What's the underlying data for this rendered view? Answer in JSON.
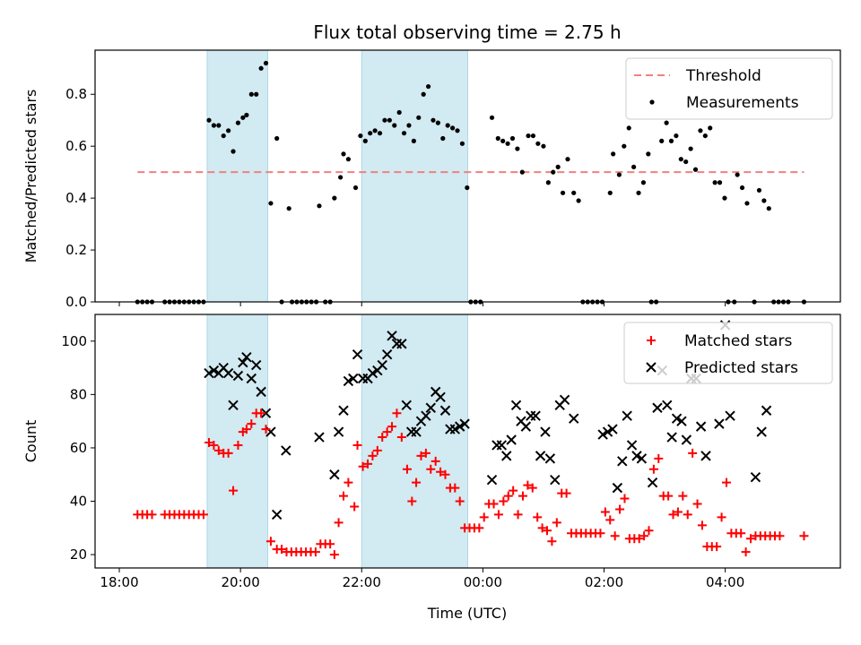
{
  "title": "Flux total observing time = 2.75 h",
  "colors": {
    "threshold": "#f08080",
    "measurement": "#000000",
    "matched": "#ff0000",
    "predicted": "#000000",
    "shade": "#add8e6"
  },
  "xaxis": {
    "label": "Time (UTC)",
    "ticks": [
      {
        "hours": 0,
        "label": "18:00"
      },
      {
        "hours": 2,
        "label": "20:00"
      },
      {
        "hours": 4,
        "label": "22:00"
      },
      {
        "hours": 6,
        "label": "00:00"
      },
      {
        "hours": 8,
        "label": "02:00"
      },
      {
        "hours": 10,
        "label": "04:00"
      }
    ],
    "xlim_hours": [
      -0.4,
      11.9
    ]
  },
  "shaded_intervals_hours": [
    [
      1.45,
      2.45
    ],
    [
      4.0,
      5.75
    ]
  ],
  "chart_data": [
    {
      "type": "scatter",
      "ylabel": "Matched/Predicted stars",
      "ylim": [
        0,
        0.97
      ],
      "yticks": [
        "0.0",
        "0.2",
        "0.4",
        "0.6",
        "0.8"
      ],
      "ytick_values": [
        0,
        0.2,
        0.4,
        0.6,
        0.8
      ],
      "legend": {
        "position": "top-right",
        "threshold_label": "Threshold",
        "measurement_label": "Measurements"
      },
      "threshold": {
        "value": 0.5,
        "x_range_hours": [
          0.3,
          11.3
        ]
      },
      "measurements": [
        [
          0.3,
          0
        ],
        [
          0.38,
          0
        ],
        [
          0.46,
          0
        ],
        [
          0.54,
          0
        ],
        [
          0.75,
          0
        ],
        [
          0.83,
          0
        ],
        [
          0.91,
          0
        ],
        [
          0.99,
          0
        ],
        [
          1.07,
          0
        ],
        [
          1.15,
          0
        ],
        [
          1.23,
          0
        ],
        [
          1.31,
          0
        ],
        [
          1.39,
          0
        ],
        [
          1.48,
          0.7
        ],
        [
          1.56,
          0.68
        ],
        [
          1.64,
          0.68
        ],
        [
          1.72,
          0.64
        ],
        [
          1.8,
          0.66
        ],
        [
          1.88,
          0.58
        ],
        [
          1.96,
          0.69
        ],
        [
          2.04,
          0.71
        ],
        [
          2.1,
          0.72
        ],
        [
          2.18,
          0.8
        ],
        [
          2.26,
          0.8
        ],
        [
          2.34,
          0.9
        ],
        [
          2.42,
          0.92
        ],
        [
          2.5,
          0.38
        ],
        [
          2.6,
          0.63
        ],
        [
          2.68,
          0
        ],
        [
          2.8,
          0.36
        ],
        [
          2.85,
          0
        ],
        [
          2.93,
          0
        ],
        [
          3.01,
          0
        ],
        [
          3.09,
          0
        ],
        [
          3.17,
          0
        ],
        [
          3.25,
          0
        ],
        [
          3.3,
          0.37
        ],
        [
          3.4,
          0
        ],
        [
          3.48,
          0
        ],
        [
          3.55,
          0.4
        ],
        [
          3.65,
          0.48
        ],
        [
          3.7,
          0.57
        ],
        [
          3.78,
          0.55
        ],
        [
          3.9,
          0.44
        ],
        [
          3.98,
          0.64
        ],
        [
          4.06,
          0.62
        ],
        [
          4.14,
          0.65
        ],
        [
          4.22,
          0.66
        ],
        [
          4.3,
          0.65
        ],
        [
          4.38,
          0.7
        ],
        [
          4.46,
          0.7
        ],
        [
          4.54,
          0.68
        ],
        [
          4.62,
          0.73
        ],
        [
          4.7,
          0.65
        ],
        [
          4.78,
          0.68
        ],
        [
          4.86,
          0.62
        ],
        [
          4.94,
          0.71
        ],
        [
          5.02,
          0.8
        ],
        [
          5.1,
          0.83
        ],
        [
          5.18,
          0.7
        ],
        [
          5.26,
          0.69
        ],
        [
          5.34,
          0.63
        ],
        [
          5.42,
          0.68
        ],
        [
          5.5,
          0.67
        ],
        [
          5.58,
          0.66
        ],
        [
          5.66,
          0.61
        ],
        [
          5.74,
          0.44
        ],
        [
          5.8,
          0
        ],
        [
          5.88,
          0
        ],
        [
          5.96,
          0
        ],
        [
          6.15,
          0.71
        ],
        [
          6.25,
          0.63
        ],
        [
          6.33,
          0.62
        ],
        [
          6.41,
          0.61
        ],
        [
          6.49,
          0.63
        ],
        [
          6.57,
          0.59
        ],
        [
          6.65,
          0.5
        ],
        [
          6.75,
          0.64
        ],
        [
          6.83,
          0.64
        ],
        [
          6.91,
          0.61
        ],
        [
          7.0,
          0.6
        ],
        [
          7.08,
          0.46
        ],
        [
          7.16,
          0.5
        ],
        [
          7.24,
          0.52
        ],
        [
          7.32,
          0.42
        ],
        [
          7.4,
          0.55
        ],
        [
          7.5,
          0.42
        ],
        [
          7.58,
          0.39
        ],
        [
          7.65,
          0
        ],
        [
          7.73,
          0
        ],
        [
          7.81,
          0
        ],
        [
          7.89,
          0
        ],
        [
          7.97,
          0
        ],
        [
          8.1,
          0.42
        ],
        [
          8.15,
          0.57
        ],
        [
          8.25,
          0.49
        ],
        [
          8.33,
          0.6
        ],
        [
          8.41,
          0.67
        ],
        [
          8.49,
          0.52
        ],
        [
          8.57,
          0.42
        ],
        [
          8.65,
          0.46
        ],
        [
          8.73,
          0.57
        ],
        [
          8.78,
          0
        ],
        [
          8.86,
          0
        ],
        [
          8.95,
          0.62
        ],
        [
          9.03,
          0.69
        ],
        [
          9.11,
          0.62
        ],
        [
          9.19,
          0.64
        ],
        [
          9.27,
          0.55
        ],
        [
          9.35,
          0.54
        ],
        [
          9.43,
          0.59
        ],
        [
          9.51,
          0.51
        ],
        [
          9.59,
          0.66
        ],
        [
          9.67,
          0.64
        ],
        [
          9.75,
          0.67
        ],
        [
          9.83,
          0.46
        ],
        [
          9.91,
          0.46
        ],
        [
          9.99,
          0.4
        ],
        [
          10.05,
          0
        ],
        [
          10.15,
          0
        ],
        [
          10.2,
          0.49
        ],
        [
          10.28,
          0.44
        ],
        [
          10.36,
          0.38
        ],
        [
          10.48,
          0
        ],
        [
          10.56,
          0.43
        ],
        [
          10.64,
          0.39
        ],
        [
          10.72,
          0.36
        ],
        [
          10.8,
          0
        ],
        [
          10.88,
          0
        ],
        [
          10.96,
          0
        ],
        [
          11.04,
          0
        ],
        [
          11.3,
          0
        ]
      ]
    },
    {
      "type": "scatter",
      "ylabel": "Count",
      "ylim": [
        15,
        110
      ],
      "yticks": [
        "20",
        "40",
        "60",
        "80",
        "100"
      ],
      "ytick_values": [
        20,
        40,
        60,
        80,
        100
      ],
      "legend": {
        "position": "top-right",
        "matched_label": "Matched stars",
        "predicted_label": "Predicted stars"
      },
      "matched": [
        [
          0.3,
          35
        ],
        [
          0.38,
          35
        ],
        [
          0.46,
          35
        ],
        [
          0.54,
          35
        ],
        [
          0.75,
          35
        ],
        [
          0.83,
          35
        ],
        [
          0.91,
          35
        ],
        [
          0.99,
          35
        ],
        [
          1.07,
          35
        ],
        [
          1.15,
          35
        ],
        [
          1.23,
          35
        ],
        [
          1.31,
          35
        ],
        [
          1.39,
          35
        ],
        [
          1.48,
          62
        ],
        [
          1.56,
          61
        ],
        [
          1.64,
          59
        ],
        [
          1.72,
          58
        ],
        [
          1.8,
          58
        ],
        [
          1.88,
          44
        ],
        [
          1.96,
          61
        ],
        [
          2.04,
          66
        ],
        [
          2.1,
          67
        ],
        [
          2.18,
          69
        ],
        [
          2.26,
          73
        ],
        [
          2.34,
          73
        ],
        [
          2.42,
          67
        ],
        [
          2.5,
          25
        ],
        [
          2.6,
          22
        ],
        [
          2.68,
          22
        ],
        [
          2.76,
          21
        ],
        [
          2.84,
          21
        ],
        [
          2.92,
          21
        ],
        [
          3.0,
          21
        ],
        [
          3.08,
          21
        ],
        [
          3.16,
          21
        ],
        [
          3.24,
          21
        ],
        [
          3.32,
          24
        ],
        [
          3.4,
          24
        ],
        [
          3.48,
          24
        ],
        [
          3.55,
          20
        ],
        [
          3.62,
          32
        ],
        [
          3.7,
          42
        ],
        [
          3.78,
          47
        ],
        [
          3.88,
          38
        ],
        [
          3.93,
          61
        ],
        [
          4.02,
          53
        ],
        [
          4.1,
          54
        ],
        [
          4.18,
          57
        ],
        [
          4.26,
          59
        ],
        [
          4.34,
          64
        ],
        [
          4.42,
          66
        ],
        [
          4.5,
          68
        ],
        [
          4.58,
          73
        ],
        [
          4.66,
          64
        ],
        [
          4.75,
          52
        ],
        [
          4.83,
          40
        ],
        [
          4.9,
          47
        ],
        [
          4.98,
          57
        ],
        [
          5.06,
          58
        ],
        [
          5.14,
          52
        ],
        [
          5.22,
          55
        ],
        [
          5.3,
          51
        ],
        [
          5.38,
          50
        ],
        [
          5.46,
          45
        ],
        [
          5.54,
          45
        ],
        [
          5.62,
          40
        ],
        [
          5.7,
          30
        ],
        [
          5.78,
          30
        ],
        [
          5.86,
          30
        ],
        [
          5.94,
          30
        ],
        [
          6.02,
          34
        ],
        [
          6.1,
          39
        ],
        [
          6.18,
          39
        ],
        [
          6.26,
          35
        ],
        [
          6.34,
          40
        ],
        [
          6.42,
          42
        ],
        [
          6.5,
          44
        ],
        [
          6.58,
          35
        ],
        [
          6.66,
          42
        ],
        [
          6.74,
          46
        ],
        [
          6.82,
          45
        ],
        [
          6.9,
          34
        ],
        [
          6.98,
          30
        ],
        [
          7.06,
          29
        ],
        [
          7.14,
          25
        ],
        [
          7.22,
          32
        ],
        [
          7.3,
          43
        ],
        [
          7.38,
          43
        ],
        [
          7.46,
          28
        ],
        [
          7.54,
          28
        ],
        [
          7.62,
          28
        ],
        [
          7.7,
          28
        ],
        [
          7.78,
          28
        ],
        [
          7.86,
          28
        ],
        [
          7.94,
          28
        ],
        [
          8.02,
          36
        ],
        [
          8.1,
          33
        ],
        [
          8.18,
          27
        ],
        [
          8.26,
          37
        ],
        [
          8.34,
          41
        ],
        [
          8.42,
          26
        ],
        [
          8.5,
          26
        ],
        [
          8.58,
          26
        ],
        [
          8.66,
          27
        ],
        [
          8.74,
          29
        ],
        [
          8.82,
          52
        ],
        [
          8.9,
          56
        ],
        [
          8.98,
          42
        ],
        [
          9.06,
          42
        ],
        [
          9.14,
          35
        ],
        [
          9.22,
          36
        ],
        [
          9.3,
          42
        ],
        [
          9.38,
          35
        ],
        [
          9.46,
          58
        ],
        [
          9.54,
          39
        ],
        [
          9.62,
          31
        ],
        [
          9.7,
          23
        ],
        [
          9.78,
          23
        ],
        [
          9.86,
          23
        ],
        [
          9.94,
          34
        ],
        [
          10.02,
          47
        ],
        [
          10.1,
          28
        ],
        [
          10.18,
          28
        ],
        [
          10.26,
          28
        ],
        [
          10.34,
          21
        ],
        [
          10.42,
          26
        ],
        [
          10.5,
          27
        ],
        [
          10.58,
          27
        ],
        [
          10.66,
          27
        ],
        [
          10.74,
          27
        ],
        [
          10.82,
          27
        ],
        [
          10.9,
          27
        ],
        [
          11.3,
          27
        ]
      ],
      "predicted": [
        [
          1.48,
          88
        ],
        [
          1.56,
          89
        ],
        [
          1.64,
          88
        ],
        [
          1.72,
          90
        ],
        [
          1.8,
          88
        ],
        [
          1.88,
          76
        ],
        [
          1.96,
          87
        ],
        [
          2.04,
          92
        ],
        [
          2.1,
          94
        ],
        [
          2.18,
          86
        ],
        [
          2.26,
          91
        ],
        [
          2.34,
          81
        ],
        [
          2.42,
          73
        ],
        [
          2.5,
          66
        ],
        [
          2.6,
          35
        ],
        [
          2.75,
          59
        ],
        [
          3.3,
          64
        ],
        [
          3.55,
          50
        ],
        [
          3.62,
          66
        ],
        [
          3.7,
          74
        ],
        [
          3.78,
          85
        ],
        [
          3.86,
          86
        ],
        [
          3.93,
          95
        ],
        [
          4.02,
          86
        ],
        [
          4.1,
          86
        ],
        [
          4.18,
          88
        ],
        [
          4.26,
          89
        ],
        [
          4.34,
          91
        ],
        [
          4.42,
          95
        ],
        [
          4.5,
          102
        ],
        [
          4.58,
          99
        ],
        [
          4.66,
          99
        ],
        [
          4.74,
          76
        ],
        [
          4.82,
          66
        ],
        [
          4.9,
          66
        ],
        [
          4.98,
          70
        ],
        [
          5.06,
          72
        ],
        [
          5.14,
          75
        ],
        [
          5.22,
          81
        ],
        [
          5.3,
          79
        ],
        [
          5.38,
          74
        ],
        [
          5.46,
          67
        ],
        [
          5.54,
          67
        ],
        [
          5.62,
          68
        ],
        [
          5.7,
          69
        ],
        [
          6.15,
          48
        ],
        [
          6.23,
          61
        ],
        [
          6.31,
          61
        ],
        [
          6.39,
          57
        ],
        [
          6.47,
          63
        ],
        [
          6.55,
          76
        ],
        [
          6.63,
          70
        ],
        [
          6.71,
          68
        ],
        [
          6.79,
          72
        ],
        [
          6.87,
          72
        ],
        [
          6.95,
          57
        ],
        [
          7.03,
          66
        ],
        [
          7.11,
          56
        ],
        [
          7.19,
          48
        ],
        [
          7.27,
          76
        ],
        [
          7.35,
          78
        ],
        [
          7.5,
          71
        ],
        [
          7.98,
          65
        ],
        [
          8.06,
          66
        ],
        [
          8.14,
          67
        ],
        [
          8.22,
          45
        ],
        [
          8.3,
          55
        ],
        [
          8.38,
          72
        ],
        [
          8.46,
          61
        ],
        [
          8.54,
          57
        ],
        [
          8.62,
          56
        ],
        [
          8.8,
          47
        ],
        [
          8.88,
          75
        ],
        [
          8.96,
          89
        ],
        [
          9.04,
          76
        ],
        [
          9.12,
          64
        ],
        [
          9.2,
          71
        ],
        [
          9.28,
          70
        ],
        [
          9.36,
          63
        ],
        [
          9.44,
          86
        ],
        [
          9.52,
          86
        ],
        [
          9.6,
          68
        ],
        [
          9.68,
          57
        ],
        [
          9.9,
          69
        ],
        [
          10.0,
          106
        ],
        [
          10.08,
          72
        ],
        [
          10.5,
          49
        ],
        [
          10.6,
          66
        ],
        [
          10.68,
          74
        ]
      ]
    }
  ]
}
